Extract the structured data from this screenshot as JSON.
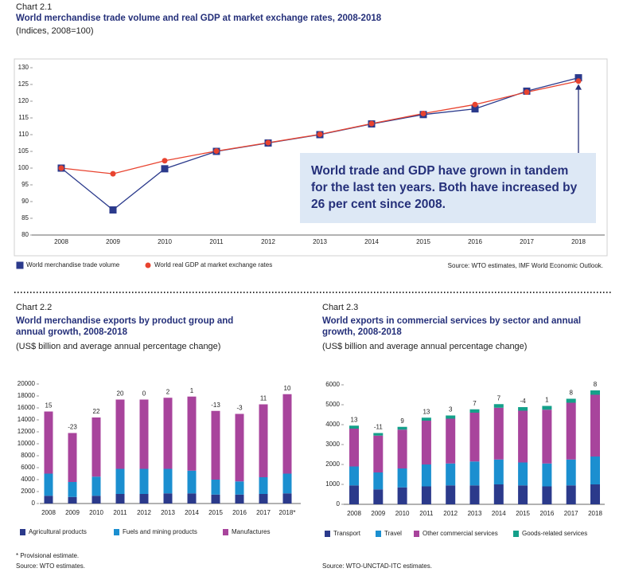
{
  "chart_data": [
    {
      "type": "line",
      "label": "Chart 2.1",
      "title": "World merchandise trade volume and real GDP at market exchange rates, 2008-2018",
      "subtitle": "(Indices, 2008=100)",
      "categories": [
        "2008",
        "2009",
        "2010",
        "2011",
        "2012",
        "2013",
        "2014",
        "2015",
        "2016",
        "2017",
        "2018"
      ],
      "series": [
        {
          "name": "World merchandise trade volume",
          "color": "#2b3a8c",
          "marker": "square",
          "values": [
            100,
            87.5,
            99.8,
            105,
            107.5,
            110,
            113.2,
            116,
            117.7,
            123,
            127
          ]
        },
        {
          "name": "World real GDP at market exchange rates",
          "color": "#e8432f",
          "marker": "circle",
          "values": [
            100,
            98.3,
            102.2,
            105.1,
            107.6,
            110.1,
            113.3,
            116.3,
            119,
            122.7,
            126
          ]
        }
      ],
      "ylim": [
        80,
        130
      ],
      "yticks": [
        80,
        85,
        90,
        95,
        100,
        105,
        110,
        115,
        120,
        125,
        130
      ],
      "annotation": "World trade and GDP have grown in tandem for the last ten years. Both have increased by 26 per cent since 2008.",
      "source": "Source: WTO estimates, IMF World Economic Outlook."
    },
    {
      "type": "stacked-bar",
      "label": "Chart 2.2",
      "title": "World merchandise exports by product group and annual growth, 2008-2018",
      "subtitle": "(US$ billion and average annual percentage change)",
      "categories": [
        "2008",
        "2009",
        "2010",
        "2011",
        "2012",
        "2013",
        "2014",
        "2015",
        "2016",
        "2017",
        "2018*"
      ],
      "series": [
        {
          "name": "Agricultural products",
          "color": "#2b3a8b",
          "values": [
            1300,
            1100,
            1300,
            1600,
            1600,
            1700,
            1700,
            1500,
            1500,
            1600,
            1700
          ]
        },
        {
          "name": "Fuels and mining products",
          "color": "#1b8fd0",
          "values": [
            3700,
            2500,
            3200,
            4200,
            4200,
            4100,
            3800,
            2500,
            2200,
            2800,
            3300
          ]
        },
        {
          "name": "Manufactures",
          "color": "#a8449c",
          "values": [
            10400,
            8200,
            9900,
            11600,
            11600,
            11900,
            12400,
            11500,
            11300,
            12200,
            13300
          ]
        }
      ],
      "growth": [
        15,
        -23,
        22,
        20,
        0,
        2,
        1,
        -13,
        -3,
        11,
        10
      ],
      "ylim": [
        0,
        20000
      ],
      "yticks": [
        0,
        2000,
        4000,
        6000,
        8000,
        10000,
        12000,
        14000,
        16000,
        18000,
        20000
      ],
      "note": "* Provisional estimate.",
      "source": "Source: WTO estimates."
    },
    {
      "type": "stacked-bar",
      "label": "Chart 2.3",
      "title": "World exports in commercial services by sector and annual growth, 2008-2018",
      "subtitle": "(US$ billion and average annual percentage change)",
      "categories": [
        "2008",
        "2009",
        "2010",
        "2011",
        "2012",
        "2013",
        "2014",
        "2015",
        "2016",
        "2017",
        "2018"
      ],
      "series": [
        {
          "name": "Transport",
          "color": "#2b3a8b",
          "values": [
            950,
            750,
            850,
            900,
            950,
            950,
            1000,
            950,
            900,
            950,
            1000
          ]
        },
        {
          "name": "Travel",
          "color": "#1b8fd0",
          "values": [
            950,
            850,
            950,
            1100,
            1100,
            1200,
            1250,
            1150,
            1150,
            1300,
            1400
          ]
        },
        {
          "name": "Other commercial services",
          "color": "#a8449c",
          "values": [
            1900,
            1850,
            1950,
            2200,
            2250,
            2450,
            2600,
            2600,
            2700,
            2850,
            3100
          ]
        },
        {
          "name": "Goods-related services",
          "color": "#14a08a",
          "values": [
            150,
            130,
            140,
            150,
            160,
            170,
            180,
            180,
            190,
            200,
            220
          ]
        }
      ],
      "growth": [
        13,
        -11,
        9,
        13,
        3,
        7,
        7,
        -4,
        1,
        8,
        8
      ],
      "ylim": [
        0,
        6000
      ],
      "yticks": [
        0,
        1000,
        2000,
        3000,
        4000,
        5000,
        6000
      ],
      "source": "Source: WTO-UNCTAD-ITC estimates."
    }
  ]
}
